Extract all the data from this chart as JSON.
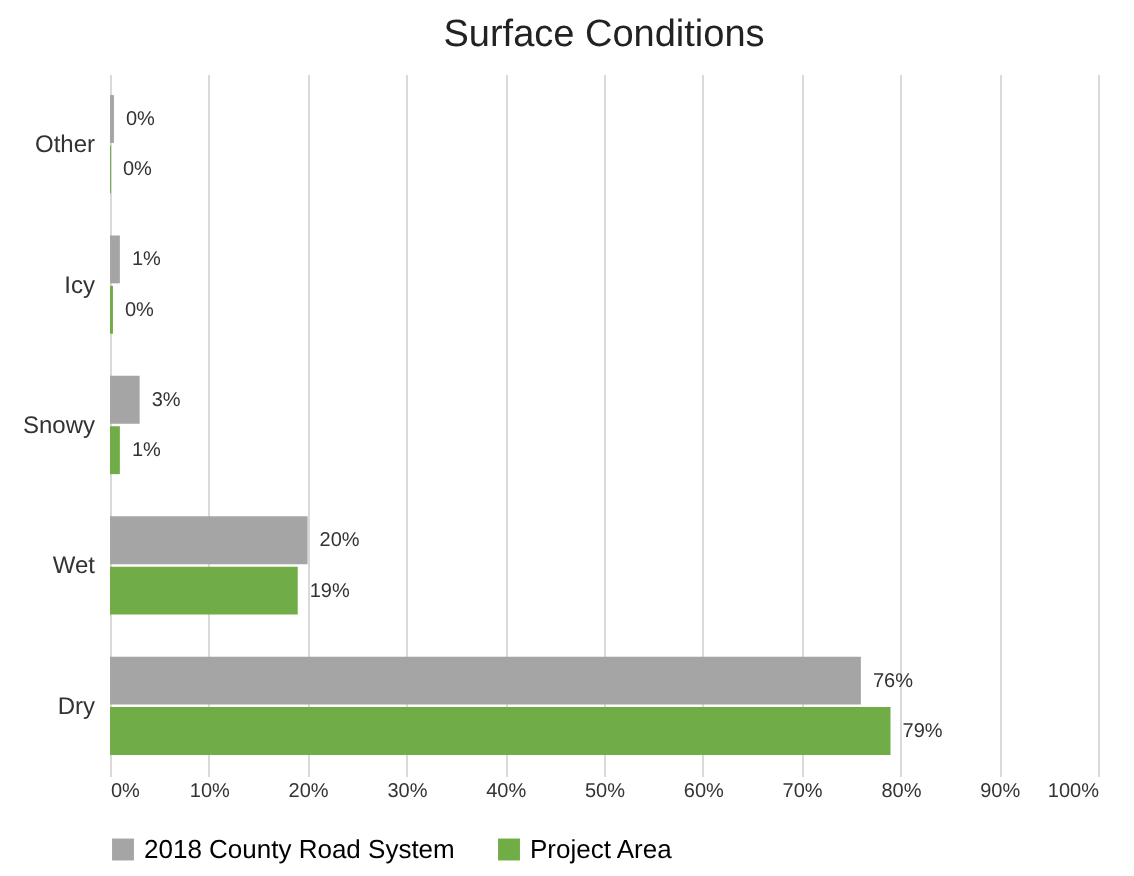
{
  "chart_data": {
    "type": "bar",
    "title": "Surface Conditions",
    "orientation": "horizontal",
    "categories": [
      "Other",
      "Icy",
      "Snowy",
      "Wet",
      "Dry"
    ],
    "series": [
      {
        "name": "2018 County Road System",
        "color": "#a5a5a5",
        "values": [
          0.4,
          1,
          3,
          20,
          76
        ],
        "value_labels": [
          "0%",
          "1%",
          "3%",
          "20%",
          "76%"
        ]
      },
      {
        "name": "Project Area",
        "color": "#70ad47",
        "values": [
          0.1,
          0.3,
          1,
          19,
          79
        ],
        "value_labels": [
          "0%",
          "0%",
          "1%",
          "19%",
          "79%"
        ]
      }
    ],
    "xlim": [
      0,
      100
    ],
    "xticks": [
      {
        "value": 0,
        "label": "0%"
      },
      {
        "value": 10,
        "label": "10%"
      },
      {
        "value": 20,
        "label": "20%"
      },
      {
        "value": 30,
        "label": "30%"
      },
      {
        "value": 40,
        "label": "40%"
      },
      {
        "value": 50,
        "label": "50%"
      },
      {
        "value": 60,
        "label": "60%"
      },
      {
        "value": 70,
        "label": "70%"
      },
      {
        "value": 80,
        "label": "80%"
      },
      {
        "value": 90,
        "label": "90%"
      },
      {
        "value": 100,
        "label": "100%"
      }
    ],
    "grid": "x",
    "legend": "bottom"
  }
}
